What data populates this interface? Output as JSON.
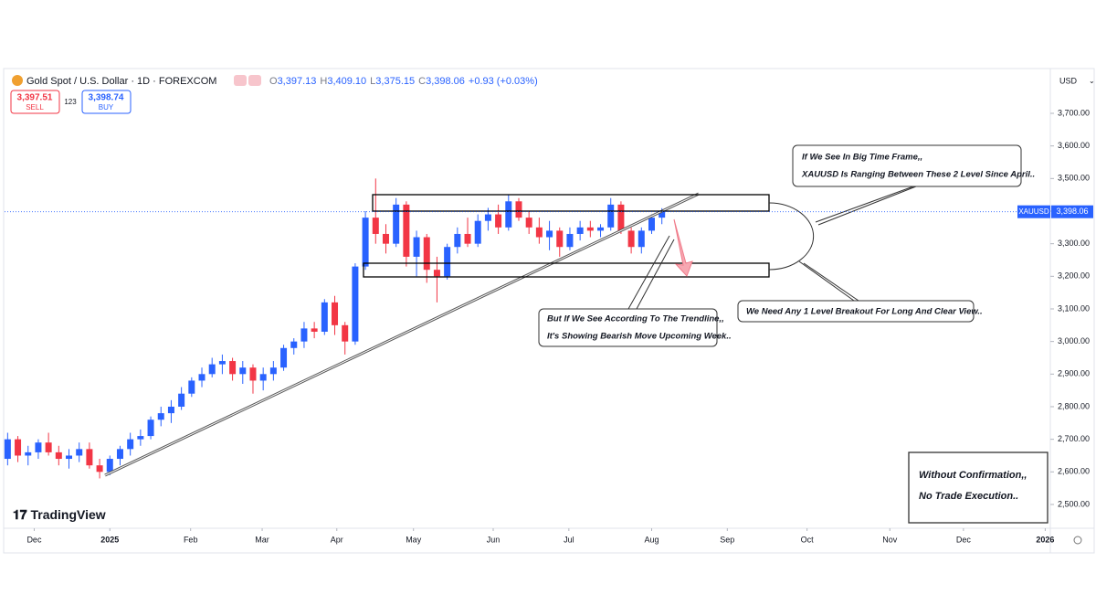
{
  "header": {
    "symbol": "Gold Spot / U.S. Dollar · 1D · FOREXCOM",
    "ohlc": [
      {
        "key": "O",
        "value": "3,397.13"
      },
      {
        "key": "H",
        "value": "3,409.10"
      },
      {
        "key": "L",
        "value": "3,375.15"
      },
      {
        "key": "C",
        "value": "3,398.06"
      }
    ],
    "change": "+0.93 (+0.03%)",
    "sell": {
      "price": "3,397.51",
      "label": "SELL"
    },
    "spread": "123",
    "buy": {
      "price": "3,398.74",
      "label": "BUY"
    },
    "currency": "USD"
  },
  "chart_data": {
    "type": "candlestick",
    "up_color": "#2962ff",
    "down_color": "#f23645",
    "ylim": [
      2427,
      3829
    ],
    "xlim": [
      -0.3,
      102
    ],
    "yticks": [
      {
        "value": 2500,
        "label": "2,500.00"
      },
      {
        "value": 2600,
        "label": "2,600.00"
      },
      {
        "value": 2700,
        "label": "2,700.00"
      },
      {
        "value": 2800,
        "label": "2,800.00"
      },
      {
        "value": 2900,
        "label": "2,900.00"
      },
      {
        "value": 3000,
        "label": "3,000.00"
      },
      {
        "value": 3100,
        "label": "3,100.00"
      },
      {
        "value": 3200,
        "label": "3,200.00"
      },
      {
        "value": 3300,
        "label": "3,300.00"
      },
      {
        "value": 3400,
        "label": "3,400.00"
      },
      {
        "value": 3500,
        "label": "3,500.00"
      },
      {
        "value": 3600,
        "label": "3,600.00"
      },
      {
        "value": 3700,
        "label": "3,700.00"
      }
    ],
    "xticks": [
      {
        "value": 2.6,
        "label": "Dec"
      },
      {
        "value": 10,
        "label": "2025"
      },
      {
        "value": 17.9,
        "label": "Feb"
      },
      {
        "value": 24.9,
        "label": "Mar"
      },
      {
        "value": 32.2,
        "label": "Apr"
      },
      {
        "value": 39.7,
        "label": "May"
      },
      {
        "value": 47.5,
        "label": "Jun"
      },
      {
        "value": 54.9,
        "label": "Jul"
      },
      {
        "value": 63,
        "label": "Aug"
      },
      {
        "value": 70.4,
        "label": "Sep"
      },
      {
        "value": 78.2,
        "label": "Oct"
      },
      {
        "value": 86.3,
        "label": "Nov"
      },
      {
        "value": 93.5,
        "label": "Dec"
      },
      {
        "value": 101.5,
        "label": "2026"
      }
    ],
    "last_price": {
      "value": 3398.06,
      "label": "3,398.06",
      "symbol": "XAUUSD"
    },
    "candles": [
      [
        2640,
        2720,
        2620,
        2700
      ],
      [
        2700,
        2710,
        2630,
        2650
      ],
      [
        2650,
        2680,
        2620,
        2660
      ],
      [
        2660,
        2700,
        2640,
        2690
      ],
      [
        2690,
        2720,
        2650,
        2660
      ],
      [
        2660,
        2680,
        2620,
        2640
      ],
      [
        2640,
        2670,
        2610,
        2650
      ],
      [
        2650,
        2690,
        2630,
        2670
      ],
      [
        2670,
        2690,
        2610,
        2620
      ],
      [
        2620,
        2640,
        2580,
        2600
      ],
      [
        2600,
        2650,
        2590,
        2640
      ],
      [
        2640,
        2680,
        2620,
        2670
      ],
      [
        2670,
        2720,
        2650,
        2700
      ],
      [
        2700,
        2730,
        2680,
        2710
      ],
      [
        2710,
        2770,
        2700,
        2760
      ],
      [
        2760,
        2800,
        2740,
        2780
      ],
      [
        2780,
        2820,
        2750,
        2800
      ],
      [
        2800,
        2860,
        2790,
        2840
      ],
      [
        2840,
        2890,
        2830,
        2880
      ],
      [
        2880,
        2920,
        2860,
        2900
      ],
      [
        2900,
        2950,
        2890,
        2930
      ],
      [
        2930,
        2960,
        2900,
        2940
      ],
      [
        2940,
        2950,
        2880,
        2900
      ],
      [
        2900,
        2940,
        2870,
        2920
      ],
      [
        2920,
        2930,
        2840,
        2880
      ],
      [
        2880,
        2920,
        2850,
        2900
      ],
      [
        2900,
        2940,
        2880,
        2920
      ],
      [
        2920,
        2990,
        2910,
        2980
      ],
      [
        2980,
        3010,
        2960,
        3000
      ],
      [
        3000,
        3060,
        2980,
        3040
      ],
      [
        3040,
        3060,
        3010,
        3030
      ],
      [
        3030,
        3130,
        3020,
        3120
      ],
      [
        3120,
        3140,
        3020,
        3050
      ],
      [
        3050,
        3060,
        2960,
        3000
      ],
      [
        3000,
        3240,
        2990,
        3230
      ],
      [
        3230,
        3400,
        3220,
        3380
      ],
      [
        3380,
        3500,
        3300,
        3330
      ],
      [
        3330,
        3360,
        3270,
        3300
      ],
      [
        3300,
        3440,
        3290,
        3420
      ],
      [
        3420,
        3430,
        3230,
        3260
      ],
      [
        3260,
        3340,
        3200,
        3320
      ],
      [
        3320,
        3330,
        3180,
        3220
      ],
      [
        3220,
        3260,
        3120,
        3200
      ],
      [
        3200,
        3300,
        3190,
        3290
      ],
      [
        3290,
        3350,
        3270,
        3330
      ],
      [
        3330,
        3380,
        3290,
        3300
      ],
      [
        3300,
        3390,
        3290,
        3370
      ],
      [
        3370,
        3410,
        3340,
        3390
      ],
      [
        3390,
        3420,
        3330,
        3350
      ],
      [
        3350,
        3450,
        3340,
        3430
      ],
      [
        3430,
        3440,
        3370,
        3380
      ],
      [
        3380,
        3400,
        3330,
        3350
      ],
      [
        3350,
        3380,
        3300,
        3320
      ],
      [
        3320,
        3370,
        3280,
        3340
      ],
      [
        3340,
        3350,
        3260,
        3290
      ],
      [
        3290,
        3350,
        3280,
        3330
      ],
      [
        3330,
        3370,
        3310,
        3350
      ],
      [
        3350,
        3370,
        3320,
        3340
      ],
      [
        3340,
        3360,
        3320,
        3350
      ],
      [
        3350,
        3440,
        3340,
        3420
      ],
      [
        3420,
        3430,
        3330,
        3340
      ],
      [
        3340,
        3350,
        3270,
        3290
      ],
      [
        3290,
        3350,
        3270,
        3340
      ],
      [
        3340,
        3390,
        3330,
        3380
      ],
      [
        3380,
        3409,
        3360,
        3398
      ]
    ]
  },
  "annotations": {
    "big_time_frame": [
      "If We See In Big Time Frame,,",
      "XAUUSD Is Ranging Between These 2 Level Since April.."
    ],
    "trendline": [
      "But If We See According To The Trendline,,",
      "It's Showing Bearish Move Upcoming Week.."
    ],
    "breakout": "We Need Any 1 Level Breakout For Long And Clear View..",
    "confirmation": [
      "Without Confirmation,,",
      "No Trade Execution.."
    ]
  },
  "brand": "TradingView"
}
